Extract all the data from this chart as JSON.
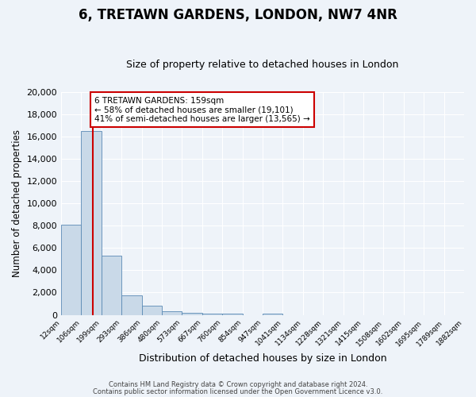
{
  "title": "6, TRETAWN GARDENS, LONDON, NW7 4NR",
  "subtitle": "Size of property relative to detached houses in London",
  "xlabel": "Distribution of detached houses by size in London",
  "ylabel": "Number of detached properties",
  "bin_labels": [
    "12sqm",
    "106sqm",
    "199sqm",
    "293sqm",
    "386sqm",
    "480sqm",
    "573sqm",
    "667sqm",
    "760sqm",
    "854sqm",
    "947sqm",
    "1041sqm",
    "1134sqm",
    "1228sqm",
    "1321sqm",
    "1415sqm",
    "1508sqm",
    "1602sqm",
    "1695sqm",
    "1789sqm",
    "1882sqm"
  ],
  "bar_values": [
    8100,
    16500,
    5300,
    1750,
    800,
    300,
    200,
    130,
    100,
    0,
    110,
    0,
    0,
    0,
    0,
    0,
    0,
    0,
    0,
    0
  ],
  "bar_color": "#c9d9e8",
  "bar_edge_color": "#5a8ab5",
  "background_color": "#eef3f9",
  "grid_color": "#ffffff",
  "vline_color": "#cc0000",
  "vline_pos": 1.6,
  "ylim": [
    0,
    20000
  ],
  "yticks": [
    0,
    2000,
    4000,
    6000,
    8000,
    10000,
    12000,
    14000,
    16000,
    18000,
    20000
  ],
  "annotation_title": "6 TRETAWN GARDENS: 159sqm",
  "annotation_line1": "← 58% of detached houses are smaller (19,101)",
  "annotation_line2": "41% of semi-detached houses are larger (13,565) →",
  "annotation_box_color": "#ffffff",
  "annotation_box_edge": "#cc0000",
  "footer1": "Contains HM Land Registry data © Crown copyright and database right 2024.",
  "footer2": "Contains public sector information licensed under the Open Government Licence v3.0."
}
